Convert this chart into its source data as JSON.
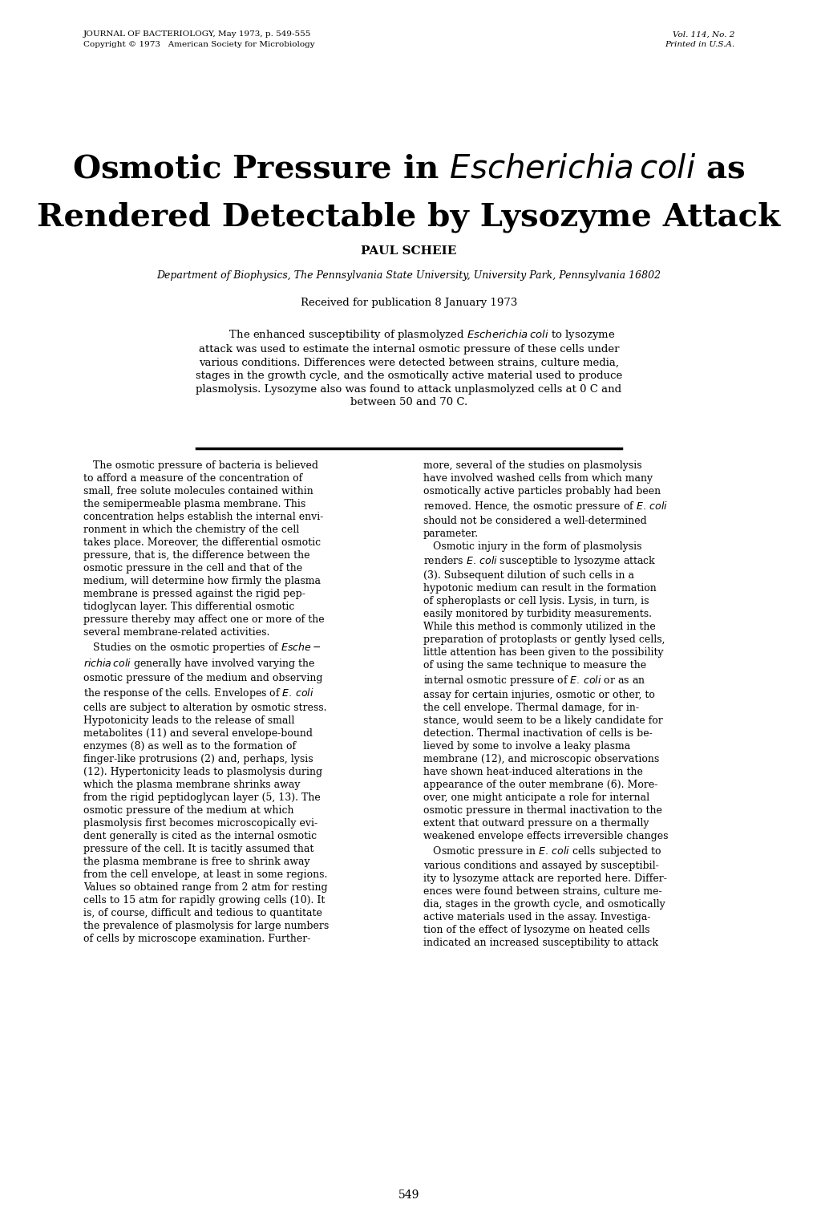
{
  "journal_header_left": "JOURNAL OF BACTERIOLOGY, May 1973, p. 549-555\nCopyright © 1973   American Society for Microbiology",
  "journal_header_right": "Vol. 114, No. 2\nPrinted in U.S.A.",
  "title_line1_plain": "Osmotic Pressure in ",
  "title_line1_italic": "Escherichia coli",
  "title_line1_end": " as",
  "title_line2": "Rendered Detectable by Lysozyme Attack",
  "author": "PAUL SCHEIE",
  "affiliation": "Department of Biophysics, The Pennsylvania State University, University Park, Pennsylvania 16802",
  "received": "Received for publication 8 January 1973",
  "page_number": "549",
  "bg_color": "#ffffff",
  "text_color": "#000000"
}
